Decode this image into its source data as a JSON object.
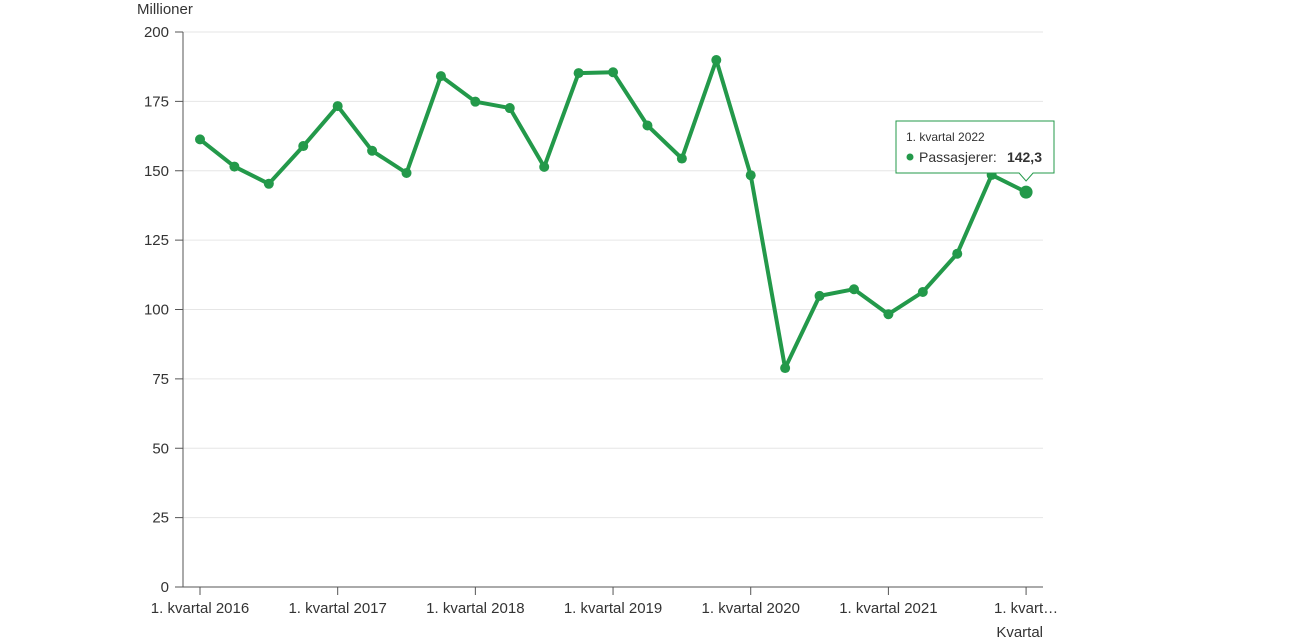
{
  "chart_data": {
    "type": "line",
    "ylabel": "Millioner",
    "xlabel": "Kvartal",
    "ylim": [
      0,
      200
    ],
    "yticks": [
      "0",
      "25",
      "50",
      "75",
      "100",
      "125",
      "150",
      "175",
      "200"
    ],
    "x_tick_labels": [
      "1. kvartal 2016",
      "1. kvartal 2017",
      "1. kvartal 2018",
      "1. kvartal 2019",
      "1. kvartal 2020",
      "1. kvartal 2021",
      "1. kvart…"
    ],
    "grid": true,
    "categories": [
      "1. kvartal 2016",
      "2. kvartal 2016",
      "3. kvartal 2016",
      "4. kvartal 2016",
      "1. kvartal 2017",
      "2. kvartal 2017",
      "3. kvartal 2017",
      "4. kvartal 2017",
      "1. kvartal 2018",
      "2. kvartal 2018",
      "3. kvartal 2018",
      "4. kvartal 2018",
      "1. kvartal 2019",
      "2. kvartal 2019",
      "3. kvartal 2019",
      "4. kvartal 2019",
      "1. kvartal 2020",
      "2. kvartal 2020",
      "3. kvartal 2020",
      "4. kvartal 2020",
      "1. kvartal 2021",
      "2. kvartal 2021",
      "3. kvartal 2021",
      "4. kvartal 2021",
      "1. kvartal 2022"
    ],
    "series": [
      {
        "name": "Passasjerer",
        "color": "#23994a",
        "values": [
          161.3,
          151.5,
          145.3,
          158.9,
          173.3,
          157.2,
          149.2,
          184.1,
          174.9,
          172.6,
          151.4,
          185.2,
          185.5,
          166.3,
          154.4,
          189.9,
          148.4,
          78.9,
          104.9,
          107.3,
          98.3,
          106.3,
          120.1,
          148.5,
          142.3
        ]
      }
    ],
    "tooltip": {
      "title": "1. kvartal 2022",
      "series_label": "Passasjerer:",
      "value_text": "142,3",
      "index": 24
    }
  }
}
